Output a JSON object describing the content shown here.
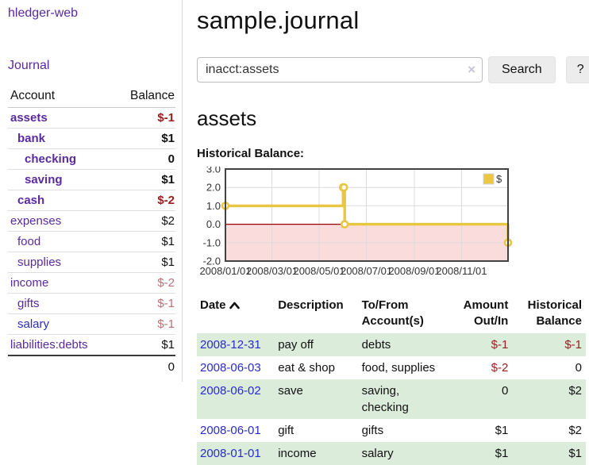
{
  "app": {
    "title": "hledger-web",
    "nav_journal_label": "Journal"
  },
  "sidebar": {
    "header": {
      "account": "Account",
      "balance": "Balance"
    },
    "accounts": [
      {
        "name": "assets",
        "indent": 1,
        "bold": true,
        "balance": "$-1",
        "neg": "strong",
        "link": "purple"
      },
      {
        "name": "bank",
        "indent": 2,
        "bold": true,
        "balance": "$1",
        "neg": "none",
        "link": "purple"
      },
      {
        "name": "checking",
        "indent": 3,
        "bold": true,
        "balance": "0",
        "neg": "none",
        "link": "purple"
      },
      {
        "name": "saving",
        "indent": 3,
        "bold": true,
        "balance": "$1",
        "neg": "none",
        "link": "purple"
      },
      {
        "name": "cash",
        "indent": 2,
        "bold": true,
        "balance": "$-2",
        "neg": "strong",
        "link": "purple"
      },
      {
        "name": "expenses",
        "indent": 1,
        "bold": false,
        "balance": "$2",
        "neg": "none",
        "link": "purple"
      },
      {
        "name": "food",
        "indent": 2,
        "bold": false,
        "balance": "$1",
        "neg": "none",
        "link": "purple"
      },
      {
        "name": "supplies",
        "indent": 2,
        "bold": false,
        "balance": "$1",
        "neg": "none",
        "link": "purple"
      },
      {
        "name": "income",
        "indent": 1,
        "bold": false,
        "balance": "$-2",
        "neg": "soft",
        "link": "purple"
      },
      {
        "name": "gifts",
        "indent": 2,
        "bold": false,
        "balance": "$-1",
        "neg": "soft",
        "link": "purple"
      },
      {
        "name": "salary",
        "indent": 2,
        "bold": false,
        "balance": "$-1",
        "neg": "soft",
        "link": "blue"
      },
      {
        "name": "liabilities:debts",
        "indent": 1,
        "bold": false,
        "balance": "$1",
        "neg": "none",
        "link": "purple"
      }
    ],
    "total": "0"
  },
  "header": {
    "title": "sample.journal"
  },
  "search": {
    "value": "inacct:assets",
    "clear_icon": "×",
    "button_label": "Search",
    "help_label": "?"
  },
  "account_page": {
    "heading": "assets",
    "chart_title": "Historical Balance:"
  },
  "chart_data": {
    "type": "line",
    "step": true,
    "title": "Historical Balance",
    "legend": "$",
    "legend_position": "top-right",
    "grid": true,
    "ylim": [
      -2,
      3
    ],
    "yticks": [
      "3.0",
      "2.0",
      "1.0",
      "0.0",
      "-1.0",
      "-2.0"
    ],
    "ytick_values": [
      3,
      2,
      1,
      0,
      -1,
      -2
    ],
    "xtick_labels": [
      "2008/01/01",
      "2008/03/01",
      "2008/05/01",
      "2008/07/01",
      "2008/09/01",
      "2008/11/01"
    ],
    "xtick_dates": [
      "2008-01-01",
      "2008-03-01",
      "2008-05-01",
      "2008-07-01",
      "2008-09-01",
      "2008-11-01"
    ],
    "x_range": [
      "2008-01-01",
      "2008-12-31"
    ],
    "series": [
      {
        "name": "$",
        "color": "#e9c63f",
        "points": [
          [
            "2008-01-01",
            1
          ],
          [
            "2008-06-01",
            2
          ],
          [
            "2008-06-02",
            2
          ],
          [
            "2008-06-03",
            0
          ],
          [
            "2008-12-31",
            -1
          ]
        ]
      }
    ],
    "negative_region_color": "#fbdcdc",
    "zero_line_color": "#990000"
  },
  "register": {
    "columns": [
      {
        "label": "Date",
        "sorted": "asc"
      },
      {
        "label": "Description"
      },
      {
        "label": "To/From Account(s)"
      },
      {
        "label": "Amount Out/In"
      },
      {
        "label": "Historical Balance"
      }
    ],
    "rows": [
      {
        "date": "2008-12-31",
        "description": "pay off",
        "accounts": [
          "debts"
        ],
        "amount": "$-1",
        "amount_negative": true,
        "balance": "$-1",
        "balance_negative": true
      },
      {
        "date": "2008-06-03",
        "description": "eat & shop",
        "accounts": [
          "food",
          "supplies"
        ],
        "amount": "$-2",
        "amount_negative": true,
        "balance": "0",
        "balance_negative": false
      },
      {
        "date": "2008-06-02",
        "description": "save",
        "accounts": [
          "saving",
          "checking"
        ],
        "amount": "0",
        "amount_negative": false,
        "balance": "$2",
        "balance_negative": false
      },
      {
        "date": "2008-06-01",
        "description": "gift",
        "accounts": [
          "gifts"
        ],
        "amount": "$1",
        "amount_negative": false,
        "balance": "$2",
        "balance_negative": false
      },
      {
        "date": "2008-01-01",
        "description": "income",
        "accounts": [
          "salary"
        ],
        "amount": "$1",
        "amount_negative": false,
        "balance": "$1",
        "balance_negative": false
      }
    ]
  },
  "colors": {
    "link_purple": "#5b2a9e",
    "link_blue": "#2a2acc",
    "negative_strong": "#9d1c1c",
    "negative_soft": "#bb7077",
    "row_green": "#dcecdb",
    "series_gold": "#e9c63f",
    "chart_border": "#424242"
  }
}
